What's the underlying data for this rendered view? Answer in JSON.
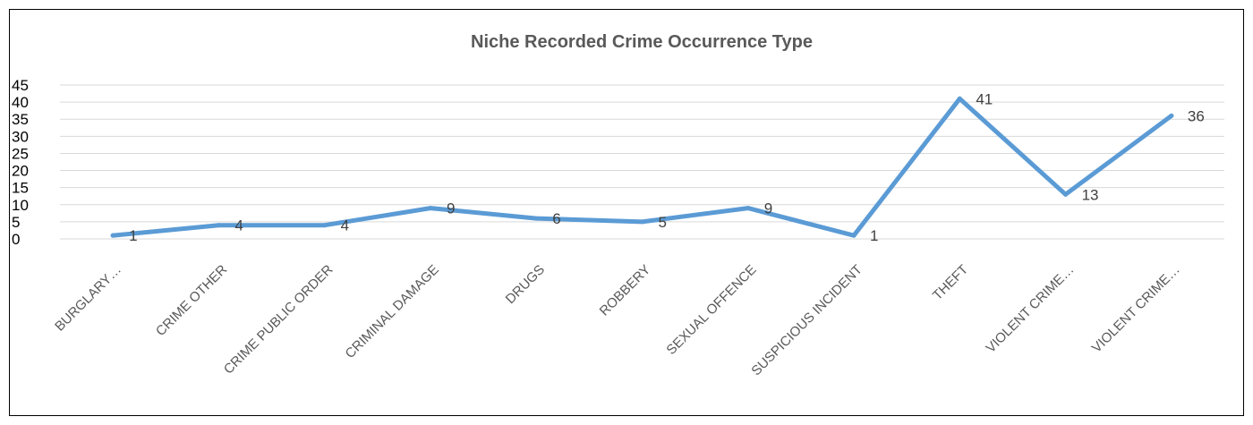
{
  "chart_data": {
    "type": "line",
    "title": "Niche Recorded Crime Occurrence Type",
    "xlabel": "",
    "ylabel": "",
    "categories": [
      "BURGLARY…",
      "CRIME OTHER",
      "CRIME PUBLIC ORDER",
      "CRIMINAL DAMAGE",
      "DRUGS",
      "ROBBERY",
      "SEXUAL OFFENCE",
      "SUSPICIOUS INCIDENT",
      "THEFT",
      "VIOLENT CRIME…",
      "VIOLENT CRIME…"
    ],
    "series": [
      {
        "values": [
          1,
          4,
          4,
          9,
          6,
          5,
          9,
          1,
          41,
          13,
          36
        ],
        "color": "#5b9bd5"
      }
    ],
    "ylim": [
      0,
      45
    ],
    "yticks": [
      0,
      5,
      10,
      15,
      20,
      25,
      30,
      35,
      40,
      45
    ],
    "grid": true,
    "legend": "none",
    "data_labels": true
  }
}
